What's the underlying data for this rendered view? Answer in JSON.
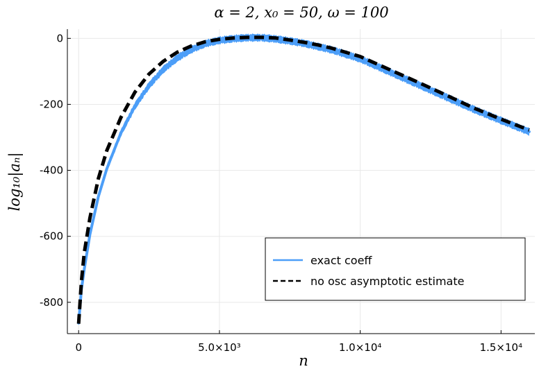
{
  "chart_data": {
    "type": "line",
    "title": "α = 2, x₀ = 50, ω = 100",
    "xlabel": "n",
    "ylabel": "log₁₀|aₙ|",
    "xlim": [
      -400,
      16200
    ],
    "ylim": [
      -895,
      28
    ],
    "grid": true,
    "legend_position": "bottom-right",
    "x_ticks": [
      {
        "value": 0,
        "label": "0"
      },
      {
        "value": 5000,
        "label": "5.0×10³"
      },
      {
        "value": 10000,
        "label": "1.0×10⁴"
      },
      {
        "value": 15000,
        "label": "1.5×10⁴"
      }
    ],
    "y_ticks": [
      {
        "value": 0,
        "label": "0"
      },
      {
        "value": -200,
        "label": "-200"
      },
      {
        "value": -400,
        "label": "-400"
      },
      {
        "value": -600,
        "label": "-600"
      },
      {
        "value": -800,
        "label": "-800"
      }
    ],
    "series": [
      {
        "name": "exact coeff",
        "color": "#4c9ef8",
        "style": "solid",
        "x": [
          0,
          100,
          200,
          400,
          700,
          1000,
          1500,
          2000,
          2500,
          3000,
          3500,
          4000,
          4500,
          5000,
          5500,
          6000,
          6500,
          7000,
          7500,
          8000,
          8500,
          9000,
          10000,
          11000,
          12000,
          13000,
          14000,
          15000,
          16000
        ],
        "y": [
          -863,
          -760,
          -700,
          -595,
          -480,
          -395,
          -287,
          -205,
          -143,
          -95,
          -60,
          -34,
          -16,
          -6,
          -1,
          2,
          2,
          -2,
          -8,
          -15,
          -25,
          -35,
          -62,
          -100,
          -138,
          -176,
          -214,
          -249,
          -283
        ]
      },
      {
        "name": "no osc asymptotic estimate",
        "color": "#000000",
        "style": "dashed",
        "x": [
          0,
          100,
          200,
          400,
          700,
          1000,
          1500,
          2000,
          2500,
          3000,
          3500,
          4000,
          4500,
          5000,
          5500,
          6000,
          6500,
          7000,
          7500,
          8000,
          8500,
          9000,
          10000,
          11000,
          12000,
          13000,
          14000,
          15000,
          16000
        ],
        "y": [
          -865,
          -735,
          -650,
          -545,
          -425,
          -340,
          -240,
          -163,
          -108,
          -70,
          -42,
          -23,
          -10,
          -3,
          1,
          3,
          3,
          1,
          -5,
          -12,
          -20,
          -30,
          -55,
          -93,
          -131,
          -170,
          -210,
          -245,
          -278
        ]
      }
    ]
  }
}
